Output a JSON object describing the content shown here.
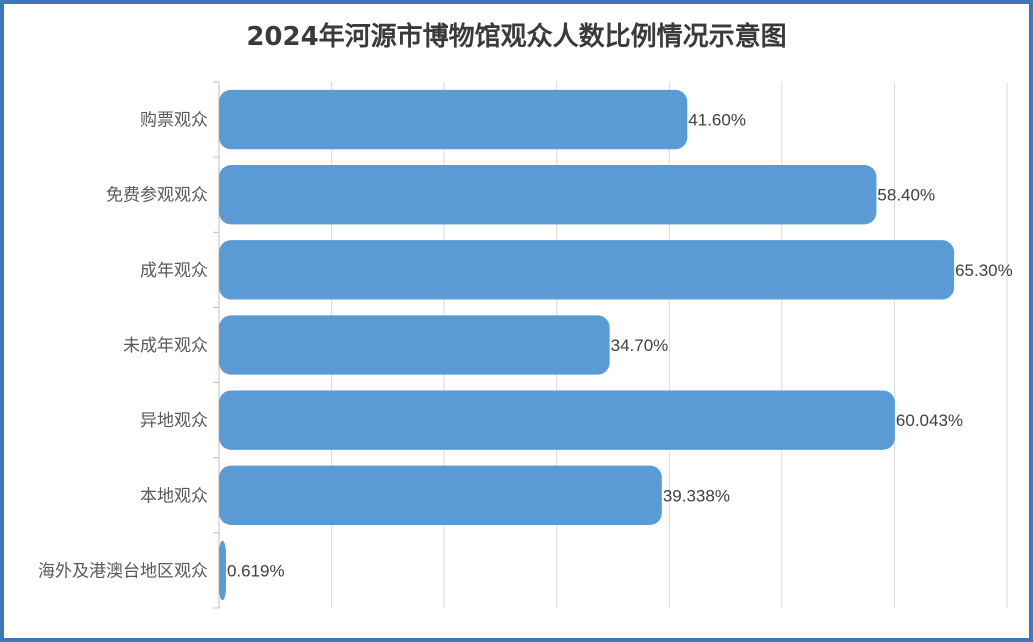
{
  "chart_data": {
    "type": "bar",
    "orientation": "horizontal",
    "title": "2024年河源市博物馆观众人数比例情况示意图",
    "categories": [
      "购票观众",
      "免费参观观众",
      "成年观众",
      "未成年观众",
      "异地观众",
      "本地观众",
      "海外及港澳台地区观众"
    ],
    "values": [
      41.6,
      58.4,
      65.3,
      34.7,
      60.043,
      39.338,
      0.619
    ],
    "value_labels": [
      "41.60%",
      "58.40%",
      "65.30%",
      "34.70%",
      "60.043%",
      "39.338%",
      "0.619%"
    ],
    "xlim": [
      0,
      70
    ],
    "gridlines": true,
    "bar_color": "#5b9bd5",
    "frame_color": "#3e78bb"
  }
}
